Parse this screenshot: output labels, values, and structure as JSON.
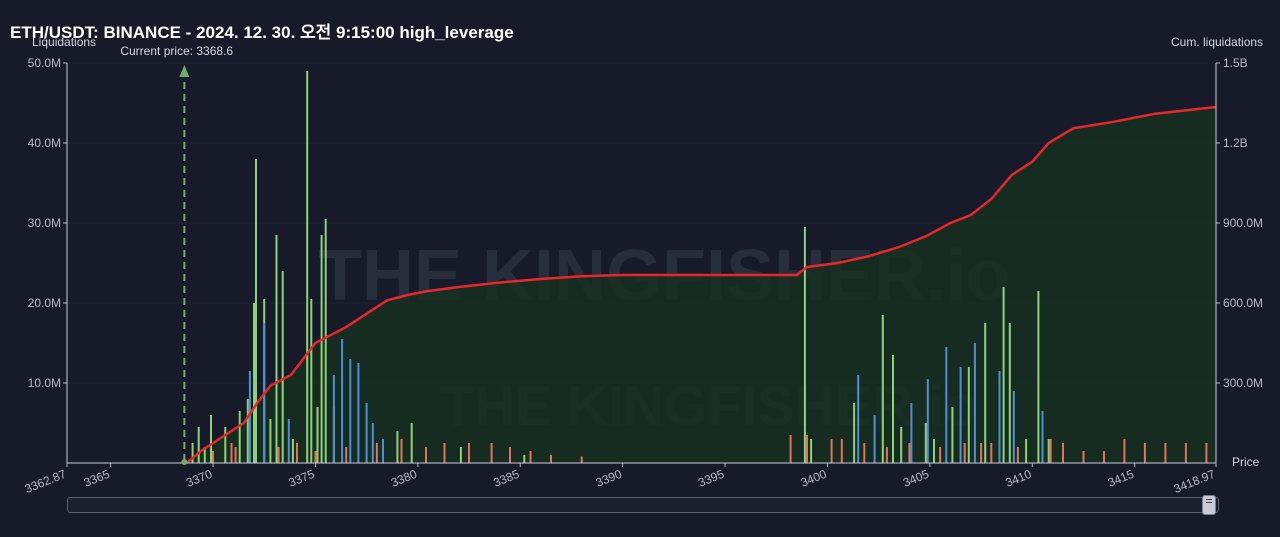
{
  "title": "ETH/USDT: BINANCE - 2024. 12. 30. 오전 9:15:00 high_leverage",
  "chart_data": {
    "type": "bar",
    "ylabel": "Liquidations",
    "y2label": "Cum. liquidations",
    "xlabel": "Price",
    "xlim": [
      3362.87,
      3418.97
    ],
    "x_ticks": [
      "3362.87",
      "3365",
      "3370",
      "3375",
      "3380",
      "3385",
      "3390",
      "3395",
      "3400",
      "3405",
      "3410",
      "3415",
      "3418.97"
    ],
    "ylim": [
      0,
      50000000
    ],
    "y_ticks": [
      "10.0M",
      "20.0M",
      "30.0M",
      "40.0M",
      "50.0M"
    ],
    "y2lim": [
      0,
      1500000000
    ],
    "y2_ticks": [
      "300.0M",
      "600.0M",
      "900.0M",
      "1.2B",
      "1.5B"
    ],
    "current_price": {
      "label": "Current price: 3368.6",
      "value": 3368.6
    },
    "colors": {
      "green": "#8fd17a",
      "blue": "#4f8fd6",
      "red": "#e0735a",
      "line": "#e8272a",
      "area": "#17301f"
    },
    "series": [
      {
        "color": "green",
        "bars": [
          [
            3369.0,
            2.5
          ],
          [
            3369.3,
            4.5
          ],
          [
            3369.6,
            2.0
          ],
          [
            3369.9,
            6.0
          ],
          [
            3370.6,
            4.5
          ],
          [
            3371.3,
            6.5
          ],
          [
            3371.7,
            8.0
          ],
          [
            3372.0,
            20.0
          ],
          [
            3372.1,
            38.0
          ],
          [
            3372.5,
            20.5
          ],
          [
            3372.8,
            5.5
          ],
          [
            3373.1,
            28.5
          ],
          [
            3373.4,
            24.0
          ],
          [
            3373.9,
            3.0
          ],
          [
            3374.6,
            49.0
          ],
          [
            3374.8,
            20.5
          ],
          [
            3375.1,
            7.0
          ],
          [
            3375.3,
            28.5
          ],
          [
            3375.5,
            30.5
          ],
          [
            3375.9,
            7.0
          ],
          [
            3379.0,
            4.0
          ],
          [
            3379.7,
            5.0
          ],
          [
            3382.1,
            2.0
          ],
          [
            3385.2,
            1.0
          ],
          [
            3398.9,
            29.5
          ],
          [
            3399.2,
            3.0
          ],
          [
            3401.3,
            7.5
          ],
          [
            3402.7,
            18.5
          ],
          [
            3403.2,
            13.5
          ],
          [
            3403.6,
            4.5
          ],
          [
            3404.8,
            5.0
          ],
          [
            3405.2,
            3.0
          ],
          [
            3406.1,
            7.0
          ],
          [
            3406.9,
            12.0
          ],
          [
            3407.7,
            17.5
          ],
          [
            3408.6,
            22.0
          ],
          [
            3408.9,
            17.5
          ],
          [
            3409.7,
            3.0
          ],
          [
            3410.3,
            21.5
          ],
          [
            3410.8,
            3.0
          ]
        ]
      },
      {
        "color": "blue",
        "bars": [
          [
            3371.8,
            11.5
          ],
          [
            3372.5,
            17.5
          ],
          [
            3373.7,
            5.5
          ],
          [
            3375.9,
            11.0
          ],
          [
            3376.3,
            15.5
          ],
          [
            3376.7,
            13.0
          ],
          [
            3377.1,
            12.5
          ],
          [
            3377.5,
            7.5
          ],
          [
            3377.8,
            5.0
          ],
          [
            3378.3,
            3.0
          ],
          [
            3401.5,
            11.0
          ],
          [
            3402.3,
            6.0
          ],
          [
            3404.1,
            7.5
          ],
          [
            3404.9,
            10.5
          ],
          [
            3405.8,
            14.5
          ],
          [
            3406.5,
            12.0
          ],
          [
            3407.2,
            15.0
          ],
          [
            3408.4,
            11.5
          ],
          [
            3409.1,
            9.0
          ],
          [
            3410.5,
            6.5
          ]
        ]
      },
      {
        "color": "red",
        "bars": [
          [
            3370.0,
            1.5
          ],
          [
            3370.9,
            2.5
          ],
          [
            3371.1,
            2.0
          ],
          [
            3373.2,
            2.0
          ],
          [
            3374.1,
            2.5
          ],
          [
            3375.0,
            1.5
          ],
          [
            3376.5,
            2.0
          ],
          [
            3378.0,
            2.5
          ],
          [
            3379.2,
            3.0
          ],
          [
            3380.4,
            2.0
          ],
          [
            3381.3,
            2.5
          ],
          [
            3382.5,
            2.5
          ],
          [
            3383.6,
            2.5
          ],
          [
            3384.5,
            2.0
          ],
          [
            3385.5,
            1.5
          ],
          [
            3386.5,
            1.0
          ],
          [
            3388.0,
            0.8
          ],
          [
            3398.2,
            3.5
          ],
          [
            3399.0,
            3.5
          ],
          [
            3400.2,
            3.0
          ],
          [
            3400.7,
            3.0
          ],
          [
            3401.8,
            2.5
          ],
          [
            3402.9,
            2.0
          ],
          [
            3404.0,
            2.5
          ],
          [
            3405.5,
            2.0
          ],
          [
            3406.7,
            2.5
          ],
          [
            3407.5,
            2.5
          ],
          [
            3408.0,
            2.5
          ],
          [
            3409.3,
            2.0
          ],
          [
            3410.9,
            3.0
          ],
          [
            3411.5,
            2.5
          ],
          [
            3412.5,
            1.5
          ],
          [
            3413.5,
            1.5
          ],
          [
            3414.5,
            3.0
          ],
          [
            3415.5,
            2.5
          ],
          [
            3416.5,
            2.5
          ],
          [
            3417.5,
            2.5
          ],
          [
            3418.5,
            2.5
          ]
        ]
      }
    ],
    "cumulative": [
      [
        3368.7,
        0
      ],
      [
        3369.5,
        50
      ],
      [
        3370.5,
        100
      ],
      [
        3371.5,
        150
      ],
      [
        3372.2,
        230
      ],
      [
        3372.8,
        290
      ],
      [
        3373.8,
        330
      ],
      [
        3374.6,
        410
      ],
      [
        3375.0,
        450
      ],
      [
        3375.5,
        470
      ],
      [
        3376.5,
        510
      ],
      [
        3377.5,
        560
      ],
      [
        3378.5,
        610
      ],
      [
        3379.5,
        630
      ],
      [
        3380.5,
        645
      ],
      [
        3382.0,
        660
      ],
      [
        3384.0,
        677
      ],
      [
        3386.0,
        690
      ],
      [
        3388.0,
        700
      ],
      [
        3390.0,
        705
      ],
      [
        3394.0,
        705
      ],
      [
        3398.5,
        705
      ],
      [
        3399.0,
        735
      ],
      [
        3400.5,
        750
      ],
      [
        3402.0,
        775
      ],
      [
        3403.5,
        810
      ],
      [
        3404.8,
        850
      ],
      [
        3406.0,
        900
      ],
      [
        3407.0,
        930
      ],
      [
        3408.0,
        990
      ],
      [
        3409.0,
        1080
      ],
      [
        3410.0,
        1130
      ],
      [
        3410.8,
        1200
      ],
      [
        3412.0,
        1255
      ],
      [
        3414.0,
        1280
      ],
      [
        3416.0,
        1310
      ],
      [
        3418.97,
        1335
      ]
    ],
    "watermark": "THE KINGFISHER.io"
  }
}
